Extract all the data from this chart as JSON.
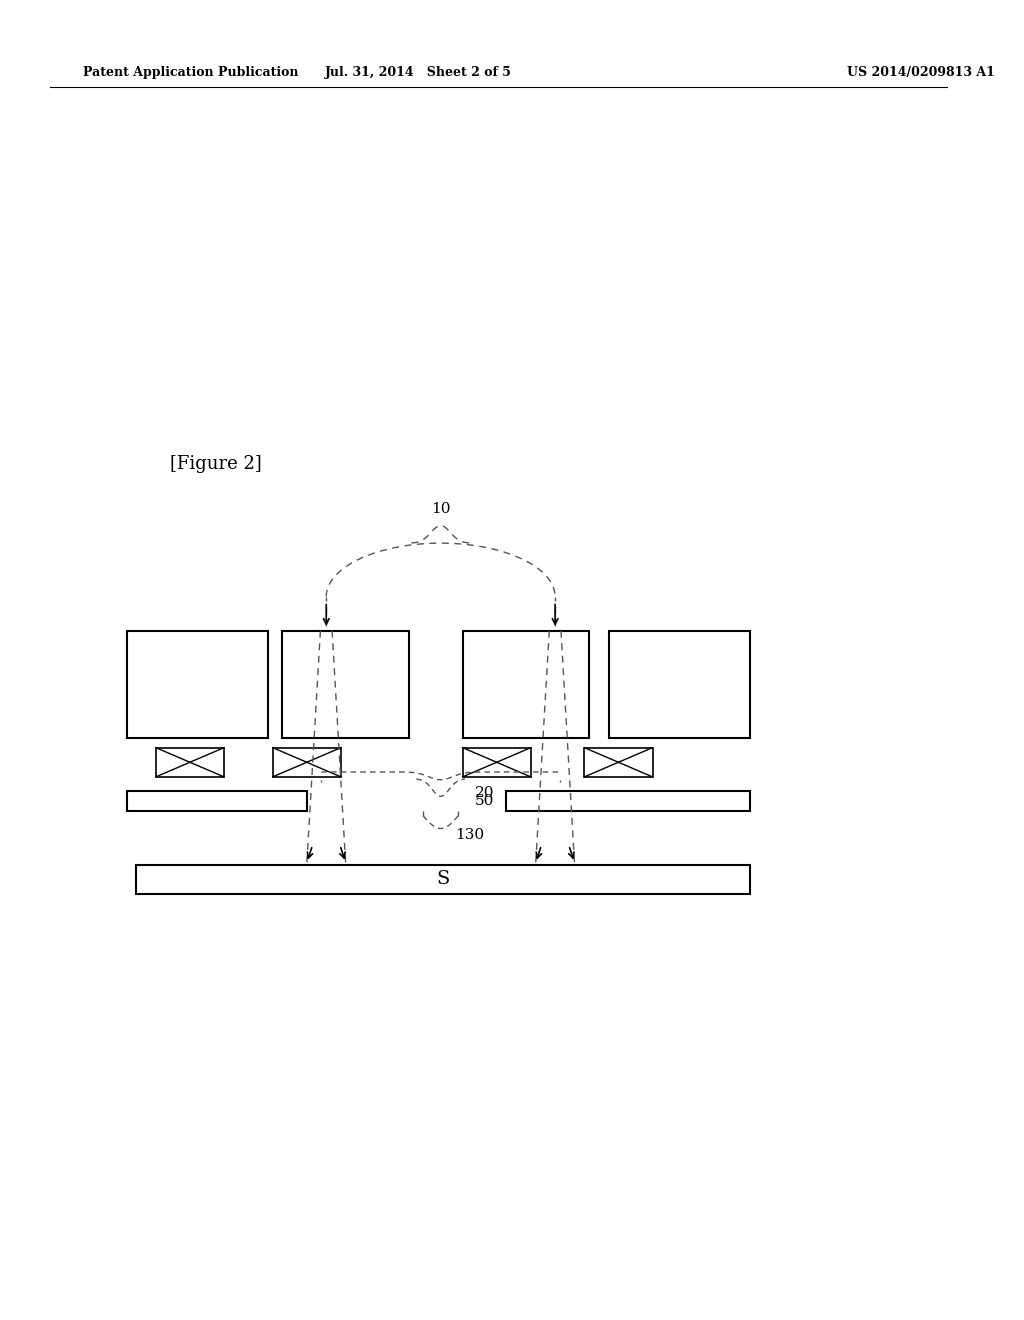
{
  "title_left": "Patent Application Publication",
  "title_mid": "Jul. 31, 2014   Sheet 2 of 5",
  "title_right": "US 2014/0209813 A1",
  "fig_label": "[Figure 2]",
  "label_10": "10",
  "label_20": "20",
  "label_50": "50",
  "label_130": "130",
  "label_S": "S",
  "bg_color": "#ffffff",
  "line_color": "#000000",
  "dashed_color": "#555555"
}
